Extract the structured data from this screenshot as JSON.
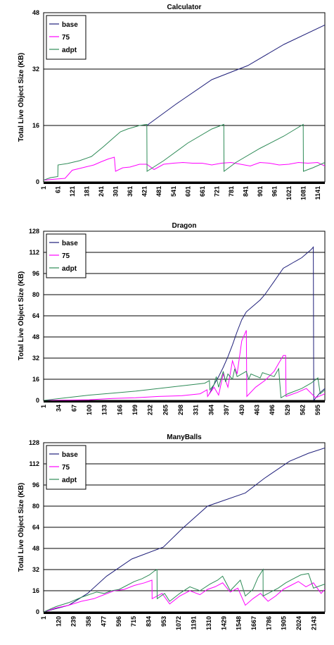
{
  "colors": {
    "base": "#1f1f7a",
    "75": "#ff00ff",
    "adpt": "#2e8b57",
    "grid": "#000000"
  },
  "chart_data": [
    {
      "type": "line",
      "title": "Calculator",
      "ylabel": "Total Live Object Size (KB)",
      "ylim": [
        0,
        48
      ],
      "yticks": [
        "0",
        "16",
        "32",
        "48"
      ],
      "xticks": [
        "1",
        "61",
        "121",
        "181",
        "241",
        "301",
        "361",
        "421",
        "481",
        "541",
        "601",
        "661",
        "721",
        "781",
        "841",
        "901",
        "961",
        "1021",
        "1081",
        "1141"
      ],
      "xlim": [
        1,
        1170
      ],
      "legend": "top-left",
      "series": [
        {
          "name": "base",
          "x": [
            430,
            550,
            700,
            850,
            1000,
            1170
          ],
          "y": [
            16,
            22,
            29,
            33,
            39,
            44.5
          ]
        },
        {
          "name": "75",
          "x": [
            1,
            90,
            120,
            150,
            180,
            210,
            240,
            270,
            295,
            300,
            330,
            360,
            400,
            430,
            460,
            500,
            540,
            580,
            620,
            660,
            700,
            740,
            780,
            820,
            860,
            900,
            940,
            980,
            1020,
            1060,
            1100,
            1140,
            1170
          ],
          "y": [
            0.5,
            1,
            3.3,
            3.8,
            4.3,
            4.8,
            5.7,
            6.5,
            7,
            3,
            4,
            4.2,
            5,
            5,
            3.5,
            5,
            5.3,
            5.5,
            5.3,
            5.3,
            4.8,
            5.3,
            5.5,
            5,
            4.5,
            5.5,
            5.3,
            4.8,
            5,
            5.5,
            5.3,
            5.5,
            4.5
          ]
        },
        {
          "name": "adpt",
          "x": [
            1,
            30,
            60,
            61,
            100,
            150,
            200,
            250,
            300,
            320,
            350,
            400,
            430,
            431,
            500,
            600,
            700,
            750,
            751,
            800,
            900,
            1000,
            1080,
            1081,
            1120,
            1170
          ],
          "y": [
            0.5,
            1.2,
            1.5,
            4.8,
            5.2,
            6,
            7.2,
            10,
            13,
            14.2,
            15,
            16,
            16.3,
            3,
            6,
            11,
            15,
            16.3,
            3,
            5.5,
            9.5,
            13,
            16.3,
            3,
            4,
            5.5
          ]
        }
      ]
    },
    {
      "type": "line",
      "title": "Dragon",
      "ylabel": "Total Live Object Size (KB)",
      "ylim": [
        0,
        128
      ],
      "yticks": [
        "0",
        "16",
        "32",
        "48",
        "64",
        "80",
        "96",
        "112",
        "128"
      ],
      "xticks": [
        "1",
        "34",
        "67",
        "100",
        "133",
        "166",
        "199",
        "232",
        "265",
        "298",
        "331",
        "364",
        "397",
        "430",
        "463",
        "496",
        "529",
        "562",
        "595"
      ],
      "xlim": [
        1,
        610
      ],
      "legend": "top-left",
      "series": [
        {
          "name": "base",
          "x": [
            360,
            370,
            380,
            390,
            400,
            410,
            420,
            430,
            440,
            450,
            460,
            470,
            480,
            490,
            500,
            510,
            520,
            530,
            540,
            550,
            560,
            570,
            580,
            585,
            586,
            600,
            610
          ],
          "y": [
            5,
            12,
            18,
            25,
            33,
            42,
            52,
            61,
            67,
            70,
            73,
            76,
            80,
            85,
            90,
            95,
            100,
            102,
            104,
            106,
            108,
            111,
            114,
            116,
            0,
            6,
            9
          ]
        },
        {
          "name": "75",
          "x": [
            1,
            100,
            150,
            200,
            250,
            300,
            340,
            355,
            356,
            370,
            380,
            390,
            400,
            410,
            420,
            430,
            440,
            441,
            460,
            480,
            500,
            510,
            520,
            525,
            526,
            550,
            570,
            590,
            610
          ],
          "y": [
            0,
            0.5,
            1.5,
            2,
            3,
            3.5,
            5,
            8,
            3,
            10,
            4,
            20,
            10,
            30,
            20,
            45,
            53,
            3,
            10,
            15,
            22,
            28,
            34,
            34,
            3,
            6,
            9,
            2,
            5
          ]
        },
        {
          "name": "adpt",
          "x": [
            1,
            50,
            100,
            150,
            200,
            250,
            300,
            350,
            360,
            361,
            370,
            375,
            380,
            390,
            395,
            400,
            410,
            415,
            420,
            440,
            445,
            450,
            470,
            475,
            500,
            510,
            515,
            530,
            560,
            580,
            595,
            600,
            610
          ],
          "y": [
            0,
            2,
            4,
            5.5,
            7,
            9,
            11,
            13,
            15,
            8,
            12,
            18,
            10,
            22,
            14,
            20,
            16,
            24,
            18,
            22,
            16,
            20,
            17,
            21,
            18,
            24,
            2,
            5,
            9,
            13,
            17,
            5,
            8
          ]
        }
      ]
    },
    {
      "type": "line",
      "title": "ManyBalls",
      "ylabel": "Total Live Object Size (KB)",
      "ylim": [
        0,
        128
      ],
      "yticks": [
        "0",
        "16",
        "32",
        "48",
        "64",
        "80",
        "96",
        "112",
        "128"
      ],
      "xticks": [
        "1",
        "120",
        "239",
        "358",
        "477",
        "596",
        "715",
        "834",
        "953",
        "1072",
        "1191",
        "1310",
        "1429",
        "1548",
        "1667",
        "1786",
        "1905",
        "2024",
        "2143"
      ],
      "xlim": [
        1,
        2230
      ],
      "legend": "top-left",
      "series": [
        {
          "name": "base",
          "x": [
            1,
            200,
            350,
            500,
            700,
            950,
            1100,
            1300,
            1600,
            1750,
            1950,
            2100,
            2230
          ],
          "y": [
            0,
            5,
            14,
            27,
            40,
            49,
            63,
            80,
            90,
            101,
            114,
            120,
            124
          ]
        },
        {
          "name": "75",
          "x": [
            1,
            100,
            200,
            300,
            400,
            480,
            560,
            640,
            720,
            800,
            860,
            861,
            940,
            1000,
            1080,
            1160,
            1240,
            1300,
            1360,
            1420,
            1480,
            1540,
            1600,
            1660,
            1720,
            1780,
            1840,
            1900,
            1960,
            2020,
            2080,
            2140,
            2200,
            2230
          ],
          "y": [
            0,
            3,
            5,
            8,
            10,
            13,
            16,
            17,
            20,
            22,
            24,
            10,
            14,
            6,
            12,
            16,
            13,
            17,
            19,
            22,
            15,
            18,
            5,
            10,
            14,
            8,
            12,
            17,
            20,
            23,
            19,
            22,
            14,
            17
          ]
        },
        {
          "name": "adpt",
          "x": [
            1,
            100,
            200,
            300,
            360,
            420,
            480,
            540,
            600,
            660,
            720,
            780,
            840,
            880,
            900,
            901,
            960,
            1000,
            1080,
            1160,
            1240,
            1320,
            1380,
            1420,
            1480,
            1520,
            1560,
            1600,
            1660,
            1700,
            1740,
            1741,
            1800,
            1860,
            1920,
            1980,
            2040,
            2100,
            2140,
            2200,
            2230
          ],
          "y": [
            0,
            4,
            7,
            11,
            13,
            15,
            14,
            16,
            17,
            20,
            23,
            25,
            28,
            31,
            32,
            10,
            14,
            8,
            14,
            19,
            16,
            21,
            24,
            27,
            16,
            20,
            24,
            12,
            17,
            26,
            32,
            12,
            15,
            18,
            22,
            25,
            28,
            29,
            18,
            20,
            21
          ]
        }
      ]
    }
  ]
}
